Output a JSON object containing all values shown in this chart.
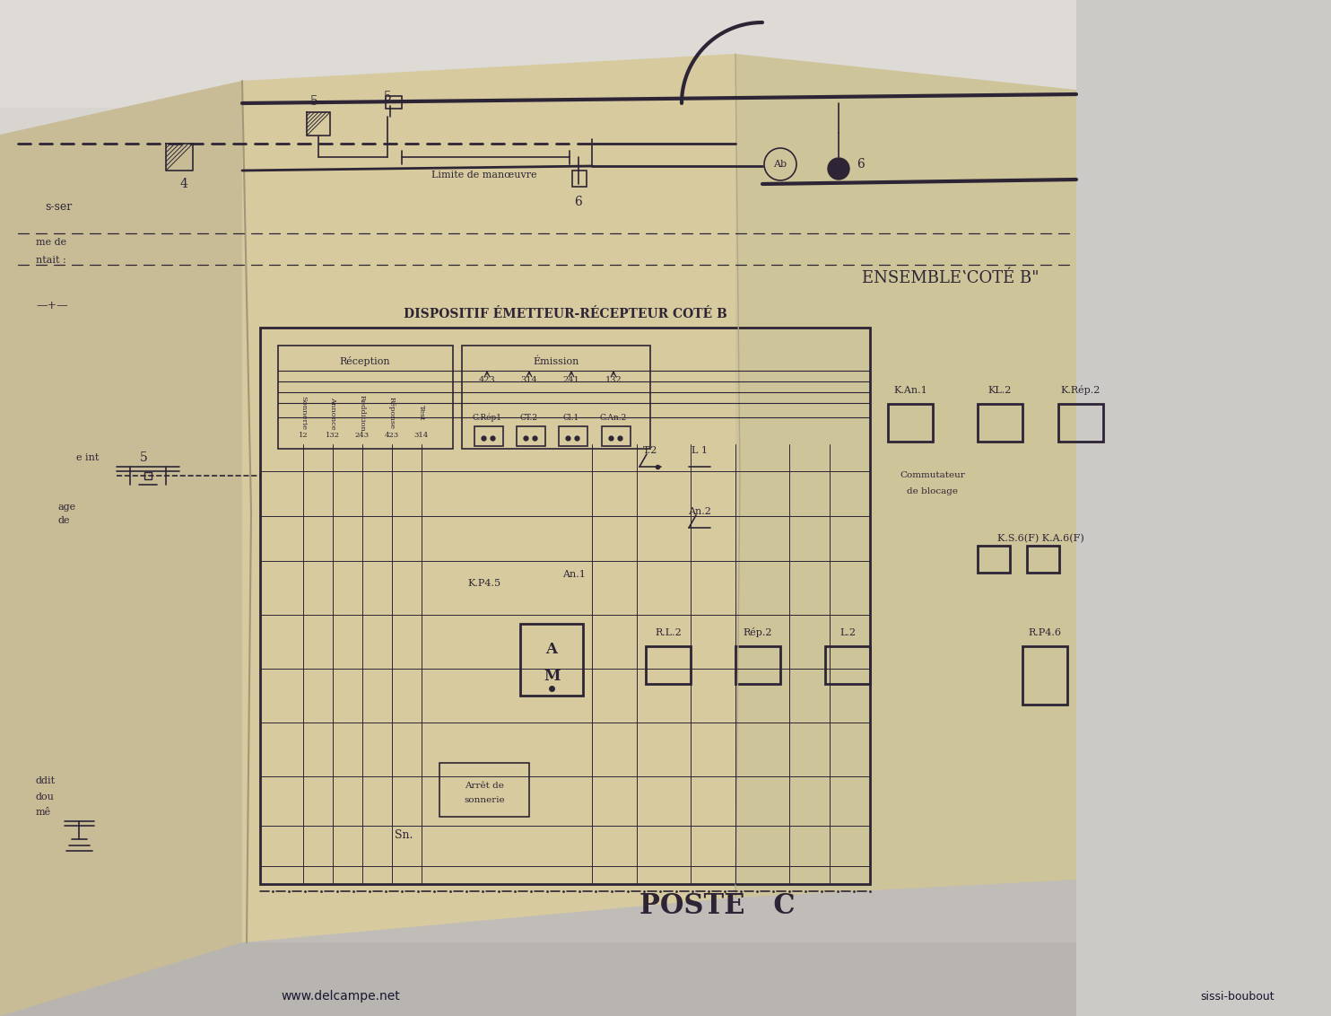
{
  "bg_color": "#c8c8c8",
  "paper_main": "#d4c8a0",
  "paper_left": "#c8bc96",
  "paper_right": "#cec29c",
  "paper_fold": "#bfb48e",
  "line_color": "#2d2535",
  "line_color2": "#3a3048",
  "shadow_color": "#a09070",
  "top_bg": "#e0dcd8",
  "title_poste_c": "POSTE   C",
  "title_ensemble": "ENSEMBLEʽCOTÉ B\"",
  "title_dispositif": "DISPOSITIF ÉMETTEUR-RÉCEPTEUR COTÉ B",
  "label_reception": "Réception",
  "label_emission": "Émission",
  "label_limite": "Limite de manœuvre",
  "watermark": "www.delcampe.net",
  "watermark2": "sissi-boubout"
}
